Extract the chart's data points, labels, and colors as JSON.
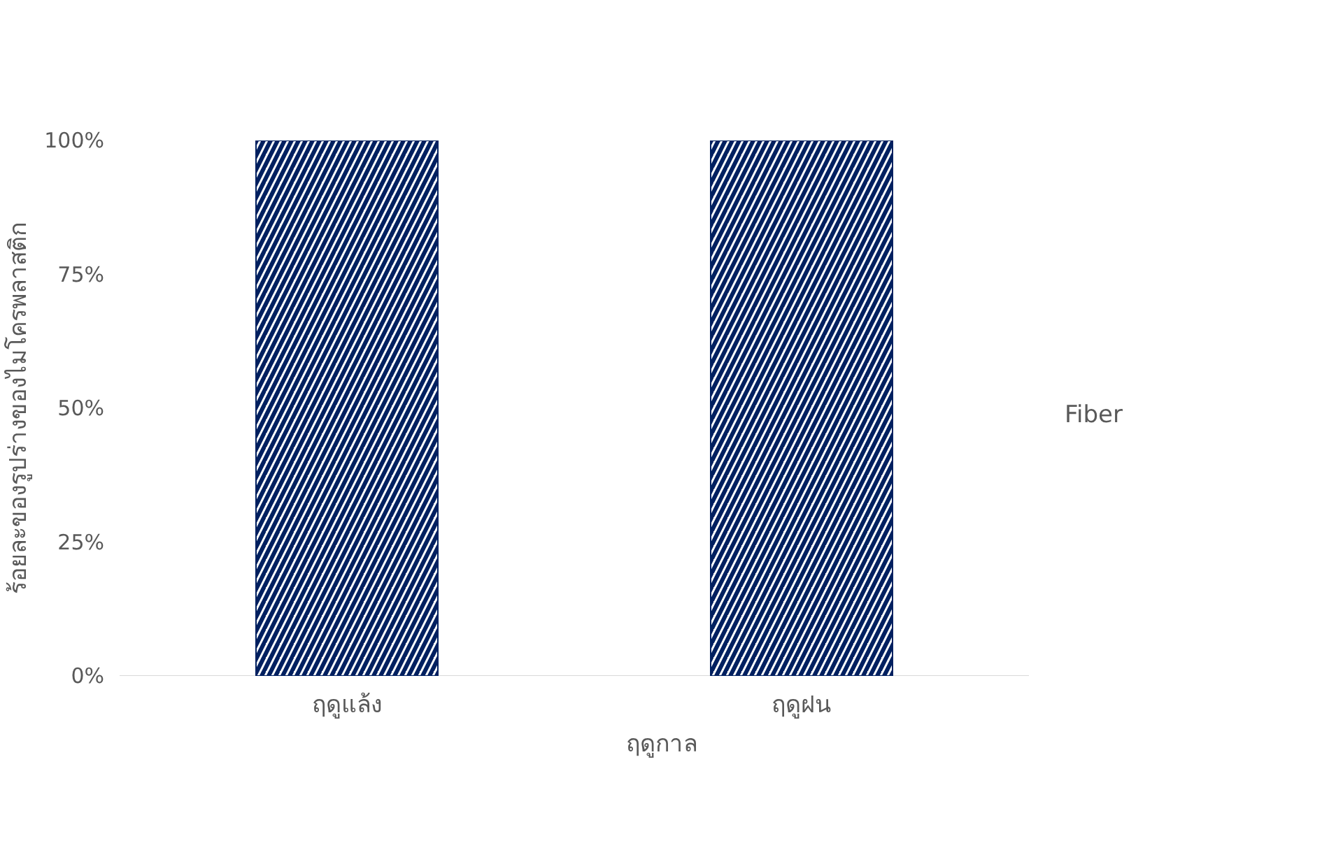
{
  "chart_data": {
    "type": "bar",
    "xlabel": "ฤดูกาล",
    "ylabel": "ร้อยละของรูปร่างของไมโครพลาสติก",
    "categories": [
      "ฤดูแล้ง",
      "ฤดูฝน"
    ],
    "series": [
      {
        "name": "Fiber",
        "color": "#002060",
        "values": [
          100,
          100
        ]
      }
    ],
    "ylim": [
      0,
      100
    ],
    "yticks": [
      {
        "value": 0,
        "label": "0%"
      },
      {
        "value": 25,
        "label": "25%"
      },
      {
        "value": 50,
        "label": "50%"
      },
      {
        "value": 75,
        "label": "75%"
      },
      {
        "value": 100,
        "label": "100%"
      }
    ],
    "grid": false,
    "legend": "right"
  }
}
